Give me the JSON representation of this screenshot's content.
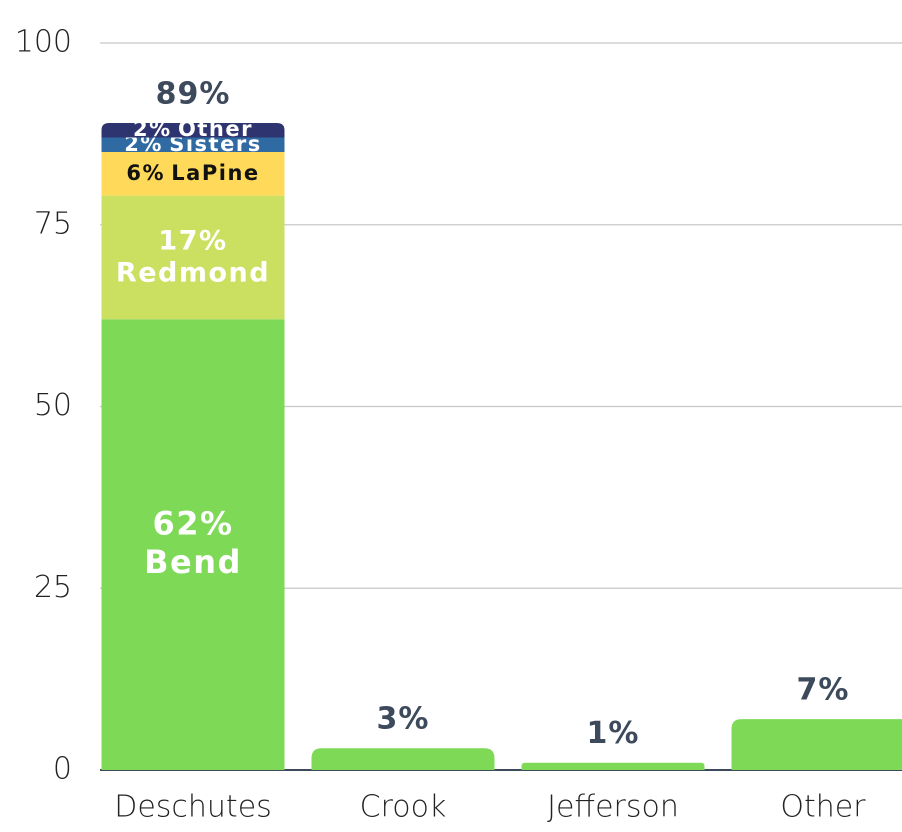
{
  "chart_data": {
    "type": "stacked-bar",
    "categories": [
      "Deschutes",
      "Crook",
      "Jefferson",
      "Other"
    ],
    "values": [
      89,
      3,
      1,
      7
    ],
    "value_labels": [
      "89%",
      "3%",
      "1%",
      "7%"
    ],
    "color": "#7ed957",
    "segments": [
      {
        "name": "Bend",
        "value": 62,
        "value_label": "62%",
        "color": "#7ed957",
        "text_color": "#ffffff"
      },
      {
        "name": "Redmond",
        "value": 17,
        "value_label": "17%",
        "color": "#cbe060",
        "text_color": "#ffffff"
      },
      {
        "name": "LaPine",
        "value": 6,
        "value_label": "6%",
        "color": "#ffd95a",
        "text_color": "#111111"
      },
      {
        "name": "Sisters",
        "value": 2,
        "value_label": "2%",
        "color": "#2f6aa3",
        "text_color": "#ffffff"
      },
      {
        "name": "Other",
        "value": 2,
        "value_label": "2%",
        "color": "#2e3470",
        "text_color": "#ffffff"
      }
    ],
    "ylim": [
      0,
      100
    ],
    "yticks": [
      0,
      25,
      50,
      75,
      100
    ],
    "grid": true
  }
}
